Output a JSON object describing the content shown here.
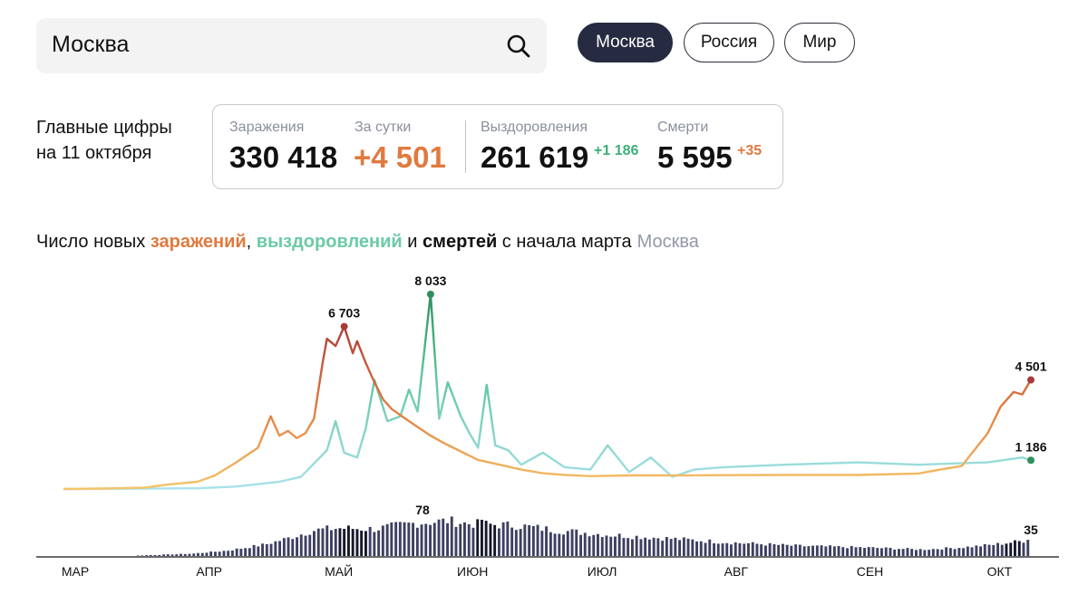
{
  "search": {
    "value": "Москва"
  },
  "region_tabs": [
    {
      "label": "Москва",
      "active": true
    },
    {
      "label": "Россия",
      "active": false
    },
    {
      "label": "Мир",
      "active": false
    }
  ],
  "headline": {
    "line1": "Главные цифры",
    "line2": "на 11 октября"
  },
  "stats": {
    "infections": {
      "label": "Заражения",
      "value": "330 418"
    },
    "daily": {
      "label": "За сутки",
      "value": "+4 501"
    },
    "recoveries": {
      "label": "Выздоровления",
      "value": "261 619",
      "delta": "+1 186"
    },
    "deaths": {
      "label": "Смерти",
      "value": "5 595",
      "delta": "+35"
    }
  },
  "chart_title": {
    "prefix": "Число новых ",
    "infections": "заражений",
    "comma": ", ",
    "recoveries": "выздоровлений",
    "and": " и ",
    "deaths": "смертей",
    "suffix": " с начала марта",
    "city": "Москва"
  },
  "colors": {
    "infections_light": "#f5c56a",
    "infections_mid": "#e07a3f",
    "infections_dark": "#a83a3a",
    "recoveries_light": "#a9e2ec",
    "recoveries_dark": "#2f8f5b",
    "deaths": "#3d4060",
    "deaths_dark": "#15172a",
    "delta_green": "#3fae7a",
    "delta_orange": "#e07a3f"
  },
  "chart_data": {
    "type": "line",
    "x_axis": {
      "tick_labels": [
        "МАР",
        "АПР",
        "МАЙ",
        "ИЮН",
        "ИЮЛ",
        "АВГ",
        "СЕН",
        "ОКТ"
      ]
    },
    "series": [
      {
        "name": "заражений",
        "x": [
          "03-01",
          "03-10",
          "03-20",
          "03-25",
          "04-01",
          "04-05",
          "04-10",
          "04-15",
          "04-18",
          "04-20",
          "04-22",
          "04-24",
          "04-26",
          "04-28",
          "04-30",
          "05-01",
          "05-03",
          "05-05",
          "05-07",
          "05-08",
          "05-10",
          "05-12",
          "05-14",
          "05-16",
          "05-20",
          "05-25",
          "05-28",
          "06-01",
          "06-05",
          "06-10",
          "06-15",
          "06-20",
          "06-25",
          "07-01",
          "07-10",
          "07-20",
          "08-01",
          "08-15",
          "09-01",
          "09-15",
          "09-20",
          "09-25",
          "10-01",
          "10-04",
          "10-07",
          "10-09",
          "10-11"
        ],
        "values": [
          0,
          20,
          60,
          180,
          300,
          550,
          1100,
          1700,
          3000,
          2200,
          2400,
          2100,
          2300,
          2900,
          5200,
          6200,
          5900,
          6703,
          5600,
          6100,
          5200,
          4400,
          3700,
          3300,
          2800,
          2200,
          1900,
          1550,
          1200,
          1000,
          800,
          650,
          580,
          530,
          560,
          560,
          570,
          580,
          580,
          640,
          800,
          950,
          2300,
          3400,
          4000,
          3900,
          4501
        ]
      },
      {
        "name": "выздоровлений",
        "x": [
          "03-01",
          "03-15",
          "04-01",
          "04-10",
          "04-20",
          "04-25",
          "05-01",
          "05-03",
          "05-05",
          "05-08",
          "05-10",
          "05-12",
          "05-15",
          "05-18",
          "05-20",
          "05-22",
          "05-25",
          "05-27",
          "05-29",
          "06-01",
          "06-03",
          "06-05",
          "06-07",
          "06-09",
          "06-12",
          "06-15",
          "06-20",
          "06-25",
          "07-01",
          "07-05",
          "07-10",
          "07-15",
          "07-20",
          "07-25",
          "08-01",
          "08-15",
          "09-01",
          "09-15",
          "10-01",
          "10-05",
          "10-09",
          "10-11"
        ],
        "values": [
          0,
          10,
          30,
          100,
          300,
          500,
          1600,
          2800,
          1500,
          1300,
          2500,
          4500,
          2800,
          3000,
          4100,
          3200,
          8033,
          2900,
          4400,
          3000,
          2300,
          1700,
          4300,
          1800,
          1600,
          1000,
          1500,
          900,
          800,
          1800,
          700,
          1300,
          500,
          800,
          900,
          1000,
          1100,
          1000,
          1100,
          1200,
          1300,
          1186
        ]
      }
    ],
    "bars": {
      "name": "смертей",
      "peak_label": "78",
      "last_label": "35"
    },
    "annotations": {
      "infections_peak": "6 703",
      "recoveries_peak": "8 033",
      "infections_last": "4 501",
      "recoveries_last": "1 186",
      "deaths_peak": "78",
      "deaths_last": "35"
    },
    "grid": false
  }
}
